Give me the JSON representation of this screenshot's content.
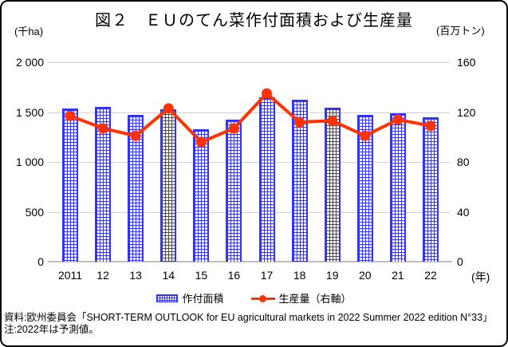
{
  "title": "図２　ＥＵのてん菜作付面積および生産量",
  "left_axis_unit": "(千ha)",
  "right_axis_unit": "(百万トン)",
  "x_axis_unit": "(年)",
  "legend": {
    "area_label": "作付面積",
    "line_label": "生産量（右軸）"
  },
  "footer": {
    "source": "資料:欧州委員会「SHORT-TERM OUTLOOK for EU agricultural markets in 2022 Summer 2022 edition N°33」",
    "note": "注:2022年は予測値。"
  },
  "colors": {
    "bar_blue": "#3333ff",
    "line_red": "#ff3300",
    "gridline": "#d2d2d2",
    "text": "#000000"
  },
  "chart_data": {
    "type": "bar",
    "subtype": "bar-line-combo",
    "title": "図２　ＥＵのてん菜作付面積および生産量",
    "categories": [
      "2011",
      "12",
      "13",
      "14",
      "15",
      "16",
      "17",
      "18",
      "19",
      "20",
      "21",
      "22"
    ],
    "series": [
      {
        "name": "作付面積",
        "type": "bar",
        "axis": "left",
        "unit": "千ha",
        "values": [
          1540,
          1550,
          1470,
          1525,
          1330,
          1425,
          1645,
          1625,
          1545,
          1470,
          1485,
          1450
        ]
      },
      {
        "name": "生産量（右軸）",
        "type": "line",
        "axis": "right",
        "unit": "百万トン",
        "values": [
          117,
          107,
          101,
          123,
          96,
          107,
          135,
          112,
          113,
          101,
          114,
          109
        ]
      }
    ],
    "left_axis": {
      "label": "(千ha)",
      "range": [
        0,
        2000
      ],
      "ticks": [
        {
          "label": "0",
          "value": 0
        },
        {
          "label": "500",
          "value": 500
        },
        {
          "label": "1 000",
          "value": 1000
        },
        {
          "label": "1 500",
          "value": 1500
        },
        {
          "label": "2 000",
          "value": 2000
        }
      ]
    },
    "right_axis": {
      "label": "(百万トン)",
      "range": [
        0,
        160
      ],
      "ticks": [
        {
          "label": "0",
          "value": 0
        },
        {
          "label": "40",
          "value": 40
        },
        {
          "label": "80",
          "value": 80
        },
        {
          "label": "120",
          "value": 120
        },
        {
          "label": "160",
          "value": 160
        }
      ]
    },
    "x_axis_label": "(年)",
    "grid": true,
    "legend_position": "bottom"
  }
}
